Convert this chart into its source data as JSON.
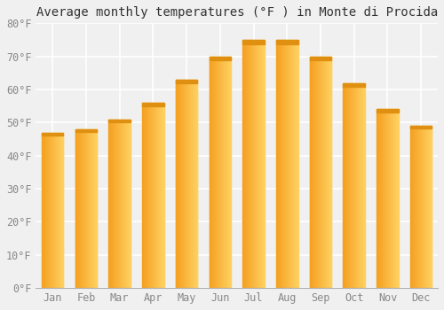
{
  "title": "Average monthly temperatures (°F ) in Monte di Procida",
  "months": [
    "Jan",
    "Feb",
    "Mar",
    "Apr",
    "May",
    "Jun",
    "Jul",
    "Aug",
    "Sep",
    "Oct",
    "Nov",
    "Dec"
  ],
  "values": [
    47,
    48,
    51,
    56,
    63,
    70,
    75,
    75,
    70,
    62,
    54,
    49
  ],
  "ylim": [
    0,
    80
  ],
  "yticks": [
    0,
    10,
    20,
    30,
    40,
    50,
    60,
    70,
    80
  ],
  "ytick_labels": [
    "0°F",
    "10°F",
    "20°F",
    "30°F",
    "40°F",
    "50°F",
    "60°F",
    "70°F",
    "80°F"
  ],
  "background_color": "#f0f0f0",
  "grid_color": "#ffffff",
  "bar_left_color": "#F5A020",
  "bar_right_color": "#FFD060",
  "bar_top_color": "#E09010",
  "title_fontsize": 10,
  "tick_fontsize": 8.5
}
